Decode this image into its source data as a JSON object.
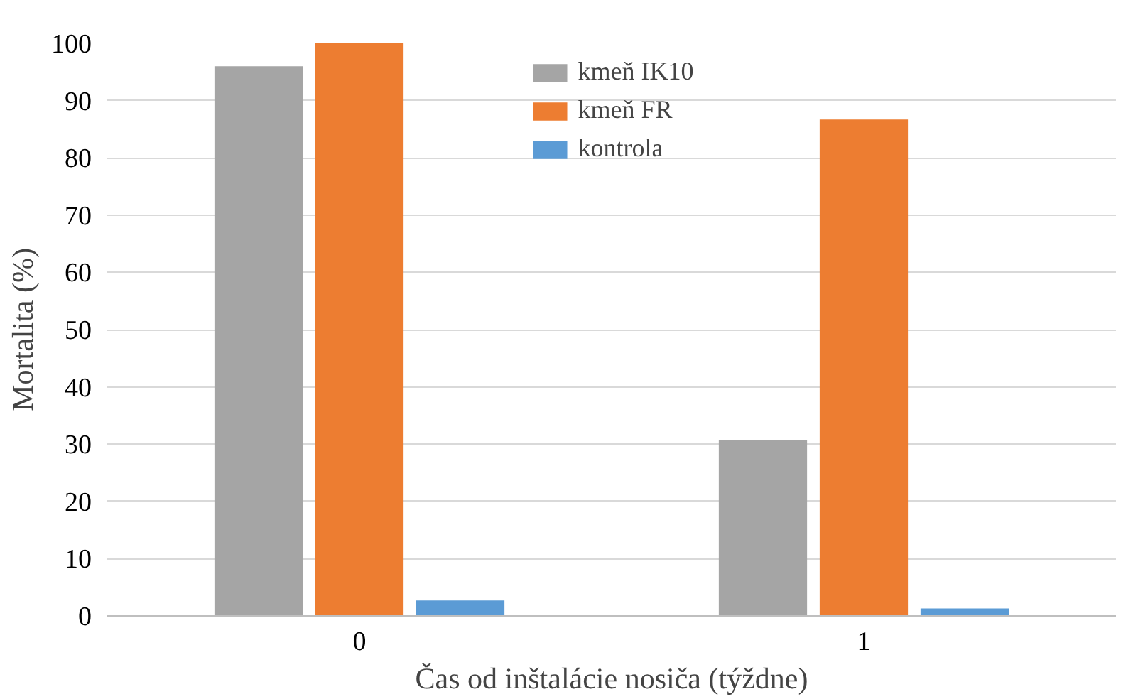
{
  "chart_data": {
    "type": "bar",
    "xlabel": "Čas od inštalácie nosiča (týždne)",
    "ylabel": "Mortalita (%)",
    "categories": [
      "0",
      "1"
    ],
    "series": [
      {
        "name": "kmeň IK10",
        "color": "#a5a5a5",
        "values": [
          96,
          30.7
        ]
      },
      {
        "name": "kmeň FR",
        "color": "#ed7d31",
        "values": [
          100,
          86.7
        ]
      },
      {
        "name": "kontrola",
        "color": "#5b9bd5",
        "values": [
          2.7,
          1.3
        ]
      }
    ],
    "ylim": [
      0,
      100
    ],
    "yticks": [
      0,
      10,
      20,
      30,
      40,
      50,
      60,
      70,
      80,
      90,
      100
    ],
    "grid": "y",
    "legend": "top"
  }
}
